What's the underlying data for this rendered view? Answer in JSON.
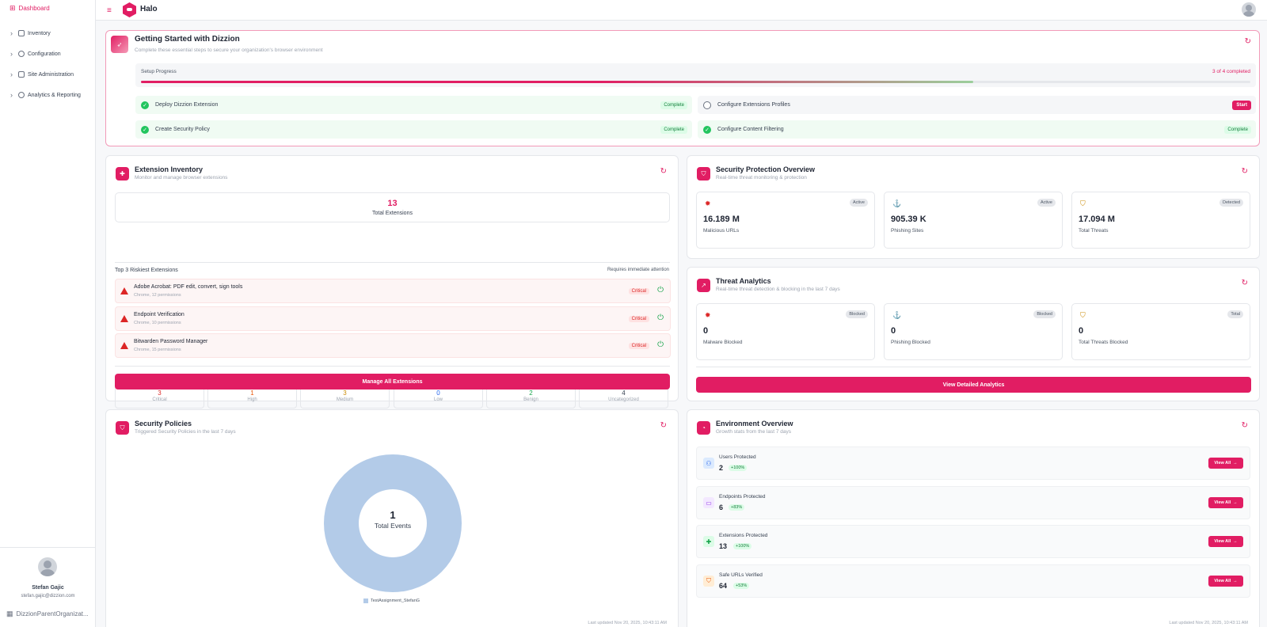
{
  "app": {
    "brand": "Halo"
  },
  "sidebar": {
    "dashboard_label": "Dashboard",
    "items": [
      {
        "label": "Inventory"
      },
      {
        "label": "Configuration"
      },
      {
        "label": "Site Administration"
      },
      {
        "label": "Analytics & Reporting"
      }
    ],
    "user_name": "Stefan Gajic",
    "user_email": "stefan.gajic@dizzion.com",
    "org": "DizzionParentOrganizat..."
  },
  "getting_started": {
    "title": "Getting Started with Dizzion",
    "subtitle": "Complete these essential steps to secure your organization's browser environment",
    "progress_label": "Setup Progress",
    "progress_count": "3 of 4 completed",
    "progress_fraction": 0.75,
    "steps": [
      {
        "label": "Deploy Dizzion Extension",
        "status": "Complete"
      },
      {
        "label": "Configure Extensions Profiles",
        "status": "Start"
      },
      {
        "label": "Create Security Policy",
        "status": "Complete"
      },
      {
        "label": "Configure Content Filtering",
        "status": "Complete"
      }
    ]
  },
  "extension_inventory": {
    "title": "Extension Inventory",
    "subtitle": "Monitor and manage browser extensions",
    "total": "13",
    "total_label": "Total Extensions",
    "severities": [
      {
        "value": "3",
        "label": "Critical",
        "color": "#dc2626"
      },
      {
        "value": "1",
        "label": "High",
        "color": "#ea580c"
      },
      {
        "value": "3",
        "label": "Medium",
        "color": "#ca8a04"
      },
      {
        "value": "0",
        "label": "Low",
        "color": "#2563eb"
      },
      {
        "value": "2",
        "label": "Benign",
        "color": "#16a34a"
      },
      {
        "value": "4",
        "label": "Uncategorized",
        "color": "#374151"
      }
    ],
    "top_label": "Top 3 Riskiest Extensions",
    "attention_label": "Requires immediate attention",
    "risky": [
      {
        "name": "Adobe Acrobat: PDF edit, convert, sign tools",
        "meta": "Chrome, 12 permissions",
        "badge": "Critical"
      },
      {
        "name": "Endpoint Verification",
        "meta": "Chrome, 10 permissions",
        "badge": "Critical"
      },
      {
        "name": "Bitwarden Password Manager",
        "meta": "Chrome, 15 permissions",
        "badge": "Critical"
      }
    ],
    "manage_button": "Manage All Extensions"
  },
  "security_overview": {
    "title": "Security Protection Overview",
    "subtitle": "Real-time threat monitoring & protection",
    "stats": [
      {
        "value": "16.189 M",
        "label": "Malicious URLs",
        "badge": "Active",
        "icon": "bug-icon"
      },
      {
        "value": "905.39 K",
        "label": "Phishing Sites",
        "badge": "Active",
        "icon": "hook-icon"
      },
      {
        "value": "17.094 M",
        "label": "Total Threats",
        "badge": "Detected",
        "icon": "shield-icon"
      }
    ]
  },
  "threat_analytics": {
    "title": "Threat Analytics",
    "subtitle": "Real-time threat detection & blocking in the last 7 days",
    "stats": [
      {
        "value": "0",
        "label": "Malware Blocked",
        "badge": "Blocked",
        "icon": "bug-icon"
      },
      {
        "value": "0",
        "label": "Phishing Blocked",
        "badge": "Blocked",
        "icon": "hook-icon"
      },
      {
        "value": "0",
        "label": "Total Threats Blocked",
        "badge": "Total",
        "icon": "shield-icon"
      }
    ],
    "button": "View Detailed Analytics"
  },
  "security_policies": {
    "title": "Security Policies",
    "subtitle": "Triggered Security Policies in the last 7 days",
    "center_value": "1",
    "center_label": "Total Events",
    "legend": "TestAssignment_StefanG",
    "updated": "Last updated Nov 20, 2025, 10:43:11 AM"
  },
  "chart_data": {
    "type": "pie",
    "categories": [
      "TestAssignment_StefanG"
    ],
    "values": [
      1
    ],
    "colors": [
      "#b3cbe8"
    ]
  },
  "environment": {
    "title": "Environment Overview",
    "subtitle": "Growth stats from the last 7 days",
    "rows": [
      {
        "label": "Users Protected",
        "value": "2",
        "change": "+100%",
        "button": "View All",
        "icon": "users-icon"
      },
      {
        "label": "Endpoints Protected",
        "value": "6",
        "change": "+83%",
        "button": "View All",
        "icon": "monitor-icon"
      },
      {
        "label": "Extensions Protected",
        "value": "13",
        "change": "+100%",
        "button": "View All",
        "icon": "puzzle-icon"
      },
      {
        "label": "Safe URLs Verified",
        "value": "64",
        "change": "+53%",
        "button": "View All",
        "icon": "shield-check-icon"
      }
    ],
    "updated": "Last updated Nov 20, 2025, 10:43:11 AM"
  },
  "colors": {
    "accent": "#e11d63"
  }
}
